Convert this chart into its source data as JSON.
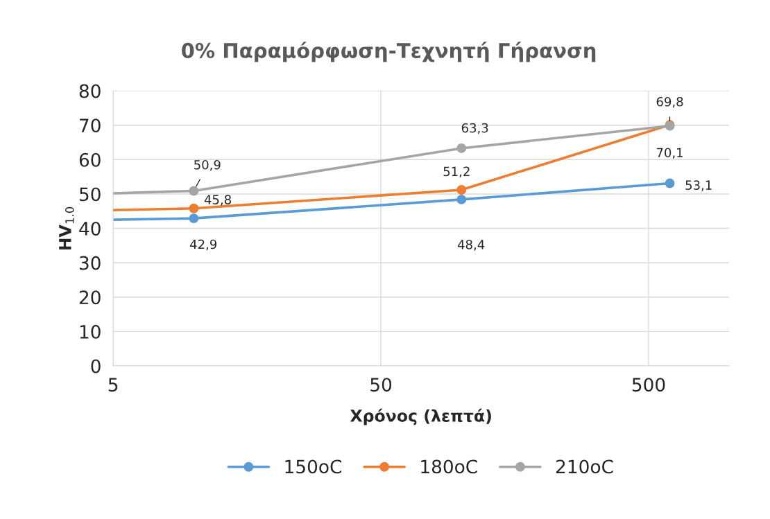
{
  "chart_data": {
    "type": "line",
    "title": "0% Παραμόρφωση-Τεχνητή Γήρανση",
    "xlabel": "Χρόνος (λεπτά)",
    "ylabel": "HV$_{1.0}$",
    "log": "x",
    "xlim": [
      5,
      1000
    ],
    "xticks": [
      5,
      50,
      500
    ],
    "ylim": [
      0,
      80
    ],
    "yticks": [
      0,
      10,
      20,
      30,
      40,
      50,
      60,
      70,
      80
    ],
    "grid": true,
    "legend": "bottom",
    "marker": "circle",
    "line_style": "solid",
    "series": [
      {
        "name": "150oC",
        "color": "#5b9bd5",
        "x": [
          5,
          10,
          100,
          600
        ],
        "values": [
          42.5,
          42.9,
          48.4,
          53.1
        ],
        "value_labels": [
          null,
          "42,9",
          "48,4",
          "53,1"
        ]
      },
      {
        "name": "180oC",
        "color": "#ed7d31",
        "x": [
          5,
          10,
          100,
          600
        ],
        "values": [
          45.3,
          45.8,
          51.2,
          70.1
        ],
        "value_labels": [
          null,
          "45,8",
          "51,2",
          "70,1"
        ]
      },
      {
        "name": "210oC",
        "color": "#a5a5a5",
        "x": [
          5,
          10,
          100,
          600
        ],
        "values": [
          50.2,
          50.9,
          63.3,
          69.8
        ],
        "value_labels": [
          null,
          "50,9",
          "63,3",
          "69,8"
        ]
      }
    ]
  }
}
